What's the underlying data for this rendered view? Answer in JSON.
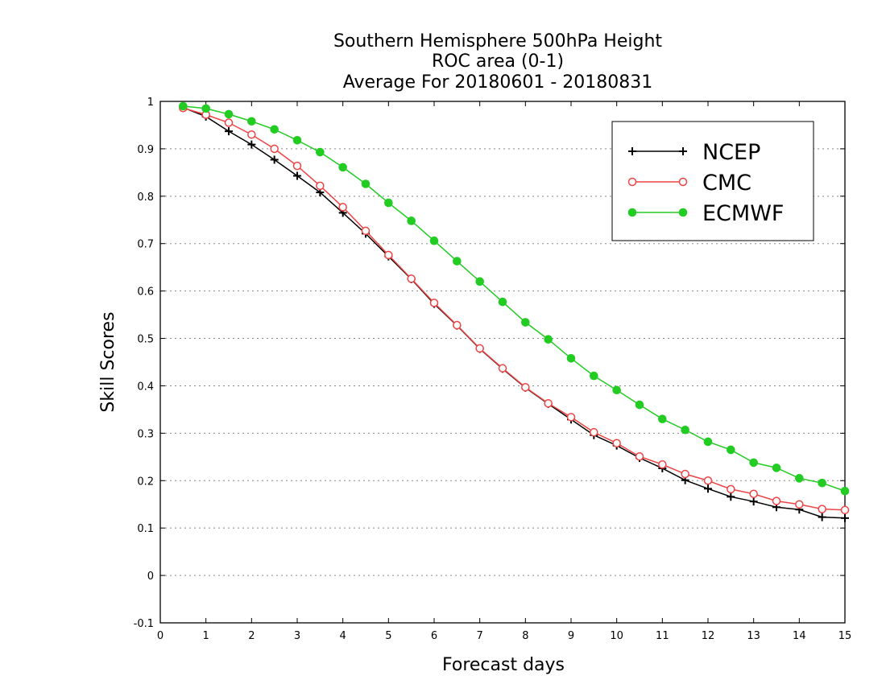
{
  "chart_data": {
    "type": "line",
    "title_lines": [
      "Southern Hemisphere 500hPa Height",
      "ROC area (0-1)",
      "Average For 20180601 - 20180831"
    ],
    "xlabel": "Forecast days",
    "ylabel": "Skill Scores",
    "xlim": [
      0,
      15
    ],
    "ylim": [
      -0.1,
      1
    ],
    "x_ticks": [
      0,
      1,
      2,
      3,
      4,
      5,
      6,
      7,
      8,
      9,
      10,
      11,
      12,
      13,
      14,
      15
    ],
    "x_tick_labels": [
      "0",
      "1",
      "2",
      "3",
      "4",
      "5",
      "6",
      "7",
      "8",
      "9",
      "10",
      "11",
      "12",
      "13",
      "14",
      "15"
    ],
    "y_ticks": [
      -0.1,
      0,
      0.1,
      0.2,
      0.3,
      0.4,
      0.5,
      0.6,
      0.7,
      0.8,
      0.9,
      1
    ],
    "y_tick_labels": [
      "-0.1",
      "0",
      "0.1",
      "0.2",
      "0.3",
      "0.4",
      "0.5",
      "0.6",
      "0.7",
      "0.8",
      "0.9",
      "1"
    ],
    "grid": "horizontal-dotted",
    "legend_position": "top-right",
    "x": [
      0.5,
      1,
      1.5,
      2,
      2.5,
      3,
      3.5,
      4,
      4.5,
      5,
      5.5,
      6,
      6.5,
      7,
      7.5,
      8,
      8.5,
      9,
      9.5,
      10,
      10.5,
      11,
      11.5,
      12,
      12.5,
      13,
      13.5,
      14,
      14.5,
      15
    ],
    "series": [
      {
        "name": "NCEP",
        "color": "#000000",
        "marker": "plus",
        "values": [
          0.987,
          0.968,
          0.937,
          0.909,
          0.877,
          0.843,
          0.808,
          0.765,
          0.721,
          0.673,
          0.625,
          0.573,
          0.527,
          0.478,
          0.436,
          0.396,
          0.362,
          0.329,
          0.296,
          0.274,
          0.248,
          0.226,
          0.201,
          0.183,
          0.166,
          0.156,
          0.144,
          0.139,
          0.123,
          0.121
        ]
      },
      {
        "name": "CMC",
        "color": "#ee4444",
        "marker": "open-circle",
        "values": [
          0.986,
          0.972,
          0.955,
          0.93,
          0.9,
          0.864,
          0.822,
          0.777,
          0.727,
          0.676,
          0.626,
          0.575,
          0.528,
          0.479,
          0.437,
          0.397,
          0.363,
          0.334,
          0.302,
          0.279,
          0.251,
          0.234,
          0.214,
          0.2,
          0.182,
          0.172,
          0.157,
          0.15,
          0.14,
          0.138
        ]
      },
      {
        "name": "ECMWF",
        "color": "#22cc22",
        "marker": "filled-circle",
        "values": [
          0.99,
          0.985,
          0.973,
          0.958,
          0.941,
          0.918,
          0.893,
          0.861,
          0.826,
          0.786,
          0.748,
          0.706,
          0.663,
          0.62,
          0.577,
          0.534,
          0.498,
          0.458,
          0.421,
          0.391,
          0.36,
          0.33,
          0.307,
          0.282,
          0.265,
          0.238,
          0.227,
          0.205,
          0.195,
          0.178
        ]
      }
    ]
  }
}
